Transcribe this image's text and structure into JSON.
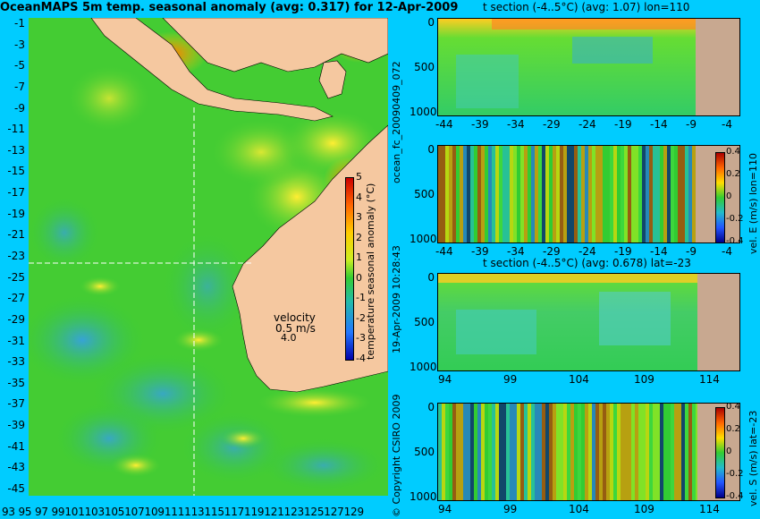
{
  "map": {
    "title": "OceanMAPS 5m temp. seasonal anomaly (avg: 0.317) for 12-Apr-2009",
    "lat_ticks": [
      "-1",
      "-3",
      "-5",
      "-7",
      "-9",
      "-11",
      "-13",
      "-15",
      "-17",
      "-19",
      "-21",
      "-23",
      "-25",
      "-27",
      "-29",
      "-31",
      "-33",
      "-35",
      "-37",
      "-39",
      "-41",
      "-43",
      "-45"
    ],
    "lon_ticks": [
      "93",
      "95",
      "97",
      "99",
      "101",
      "103",
      "105",
      "107",
      "109",
      "111",
      "113",
      "115",
      "117",
      "119",
      "121",
      "123",
      "125",
      "127",
      "129"
    ],
    "lon_tick_label": "93 95 97 99101103105107109111113115117119121123125127129",
    "velocity_label": "velocity",
    "velocity_value": "0.5 m/s",
    "velocity_value2": "4.0",
    "colorbar_label": "temperature seasonal anomaly (°C)",
    "colorbar_ticks": [
      "5",
      "4",
      "3",
      "2",
      "1",
      "0",
      "-1",
      "-2",
      "-3",
      "-4"
    ]
  },
  "side_text": {
    "run_id": "ocean_fc_20090409_072",
    "timestamp": "19-Apr-2009 10:28:43",
    "copyright": "© Copyright CSIRO 2009"
  },
  "chart_data": [
    {
      "type": "heatmap",
      "title": "t section (-4..5°C) (avg: 1.07) lon=110",
      "x_ticks": [
        "-44",
        "-39",
        "-34",
        "-29",
        "-24",
        "-19",
        "-14",
        "-9",
        "-4"
      ],
      "y_ticks": [
        "0",
        "500",
        "1000"
      ],
      "colorbar_label": "",
      "colorbar_ticks": []
    },
    {
      "type": "heatmap",
      "title": "",
      "x_ticks": [
        "-44",
        "-39",
        "-34",
        "-29",
        "-24",
        "-19",
        "-14",
        "-9",
        "-4"
      ],
      "y_ticks": [
        "0",
        "500",
        "1000"
      ],
      "colorbar_label": "vel. E (m/s) lon=110",
      "colorbar_ticks": [
        "0.4",
        "0.2",
        "0",
        "-0.2",
        "-0.4"
      ]
    },
    {
      "type": "heatmap",
      "title": "t section (-4..5°C) (avg: 0.678) lat=-23",
      "x_ticks": [
        "94",
        "99",
        "104",
        "109",
        "114"
      ],
      "y_ticks": [
        "0",
        "500",
        "1000"
      ],
      "colorbar_label": "",
      "colorbar_ticks": []
    },
    {
      "type": "heatmap",
      "title": "",
      "x_ticks": [
        "94",
        "99",
        "104",
        "109",
        "114"
      ],
      "y_ticks": [
        "0",
        "500",
        "1000"
      ],
      "colorbar_label": "vel. S (m/s) lat=-23",
      "colorbar_ticks": [
        "0.4",
        "0.2",
        "0",
        "-0.2",
        "-0.4"
      ]
    }
  ],
  "colors": {
    "background": "#00ccff",
    "land": "#f5c8a0",
    "section_land": "#c8a890",
    "ocean_green": "#33cc33",
    "anomaly_warm": "#ff8800",
    "anomaly_cool": "#3399ff"
  }
}
